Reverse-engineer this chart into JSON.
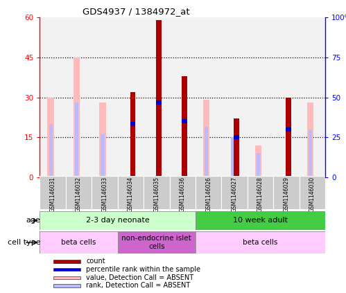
{
  "title": "GDS4937 / 1384972_at",
  "samples": [
    "GSM1146031",
    "GSM1146032",
    "GSM1146033",
    "GSM1146034",
    "GSM1146035",
    "GSM1146036",
    "GSM1146026",
    "GSM1146027",
    "GSM1146028",
    "GSM1146029",
    "GSM1146030"
  ],
  "count_values": [
    0,
    0,
    0,
    32,
    59,
    38,
    0,
    22,
    0,
    30,
    0
  ],
  "percentile_values": [
    0,
    0,
    0,
    20,
    28,
    21,
    0,
    15,
    0,
    18,
    0
  ],
  "absent_value_heights": [
    30,
    45,
    28,
    0,
    0,
    0,
    29,
    0,
    12,
    0,
    28
  ],
  "absent_rank_heights": [
    20,
    28,
    16,
    0,
    0,
    0,
    19,
    15,
    9,
    0,
    18
  ],
  "ylim_left": [
    0,
    60
  ],
  "ylim_right": [
    0,
    100
  ],
  "yticks_left": [
    0,
    15,
    30,
    45,
    60
  ],
  "ytick_labels_left": [
    "0",
    "15",
    "30",
    "45",
    "60"
  ],
  "ytick_labels_right": [
    "0",
    "25",
    "50",
    "75",
    "100%"
  ],
  "color_count": "#aa0000",
  "color_percentile": "#0000cc",
  "color_absent_value": "#ffbbbb",
  "color_absent_rank": "#bbbbff",
  "age_groups": [
    {
      "label": "2-3 day neonate",
      "start": 0,
      "end": 6,
      "color": "#ccffcc"
    },
    {
      "label": "10 week adult",
      "start": 6,
      "end": 11,
      "color": "#44cc44"
    }
  ],
  "cell_type_groups": [
    {
      "label": "beta cells",
      "start": 0,
      "end": 3,
      "color": "#ffccff"
    },
    {
      "label": "non-endocrine islet\ncells",
      "start": 3,
      "end": 6,
      "color": "#cc66cc"
    },
    {
      "label": "beta cells",
      "start": 6,
      "end": 11,
      "color": "#ffccff"
    }
  ],
  "legend_items": [
    {
      "label": "count",
      "color": "#aa0000"
    },
    {
      "label": "percentile rank within the sample",
      "color": "#0000cc"
    },
    {
      "label": "value, Detection Call = ABSENT",
      "color": "#ffbbbb"
    },
    {
      "label": "rank, Detection Call = ABSENT",
      "color": "#bbbbff"
    }
  ]
}
